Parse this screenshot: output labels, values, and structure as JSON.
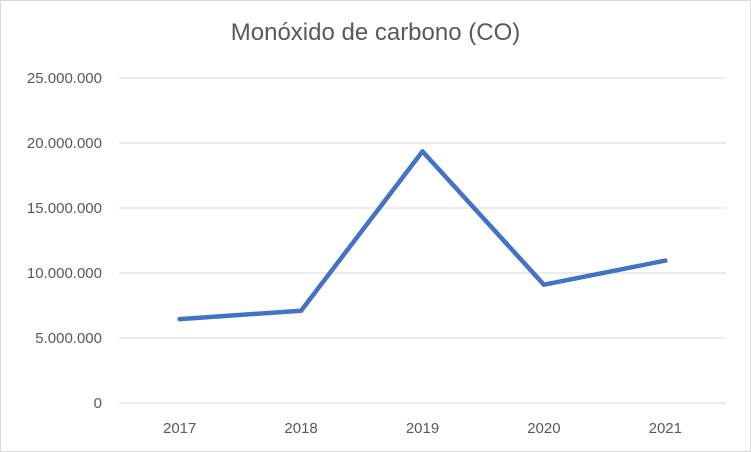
{
  "chart_data": {
    "type": "line",
    "title": "Monóxido de carbono (CO)",
    "xlabel": "",
    "ylabel": "",
    "categories": [
      "2017",
      "2018",
      "2019",
      "2020",
      "2021"
    ],
    "series": [
      {
        "values": [
          6450000,
          7100000,
          19350000,
          9100000,
          10950000
        ],
        "color": "#4472c4"
      }
    ],
    "ylim": [
      0,
      25000000
    ],
    "yticks": [
      0,
      5000000,
      10000000,
      15000000,
      20000000,
      25000000
    ],
    "ytick_labels": [
      "0",
      "5.000.000",
      "10.000.000",
      "15.000.000",
      "20.000.000",
      "25.000.000"
    ],
    "grid": true,
    "legend": "none",
    "gridline_color": "#d9d9d9",
    "text_color": "#595959"
  }
}
